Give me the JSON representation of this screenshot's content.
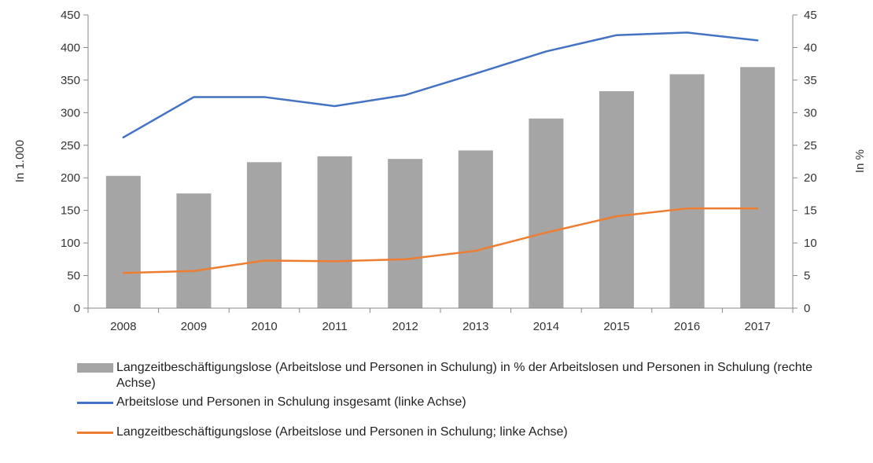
{
  "chart_data": {
    "type": "bar+line",
    "categories": [
      "2008",
      "2009",
      "2010",
      "2011",
      "2012",
      "2013",
      "2014",
      "2015",
      "2016",
      "2017"
    ],
    "ylabel_left": "In 1.000",
    "ylabel_right": "In %",
    "ylim_left": [
      0,
      450
    ],
    "ylim_right": [
      0,
      45
    ],
    "yticks_left": [
      "0",
      "50",
      "100",
      "150",
      "200",
      "250",
      "300",
      "350",
      "400",
      "450"
    ],
    "yticks_right": [
      "0",
      "5",
      "10",
      "15",
      "20",
      "25",
      "30",
      "35",
      "40",
      "45"
    ],
    "grid": false,
    "legend_position": "bottom",
    "series": [
      {
        "name": "Langzeitbeschäftigungslose (Arbeitslose und Personen in Schulung) in % der Arbeitslosen und Personen in Schulung (rechte Achse)",
        "type": "bar",
        "axis": "right",
        "color": "#a5a5a5",
        "values": [
          20.3,
          17.6,
          22.4,
          23.3,
          22.9,
          24.2,
          29.1,
          33.3,
          35.9,
          37.0
        ]
      },
      {
        "name": "Arbeitslose und Personen in Schulung insgesamt (linke Achse)",
        "type": "line",
        "axis": "left",
        "color": "#4472c4",
        "values": [
          262,
          324,
          324,
          310,
          327,
          360,
          394,
          419,
          423,
          411
        ]
      },
      {
        "name": "Langzeitbeschäftigungslose (Arbeitslose und Personen in Schulung; linke Achse)",
        "type": "line",
        "axis": "left",
        "color": "#ed7d31",
        "values": [
          54,
          57,
          73,
          72,
          75,
          88,
          116,
          141,
          153,
          153
        ]
      }
    ]
  }
}
